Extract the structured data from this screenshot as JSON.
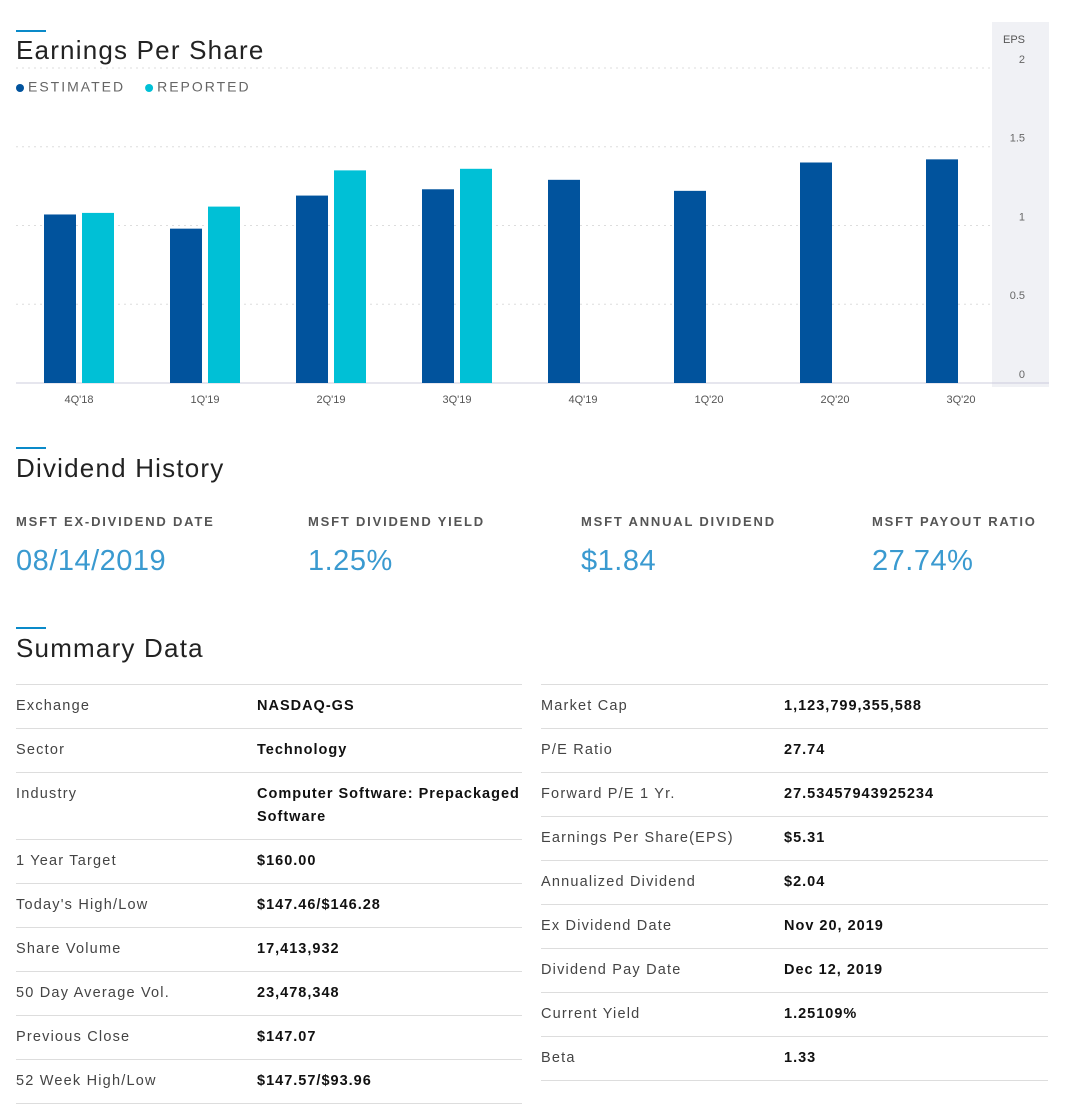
{
  "chart_data": {
    "type": "bar",
    "title": "Earnings Per Share",
    "y_label": "EPS",
    "categories": [
      "4Q'18",
      "1Q'19",
      "2Q'19",
      "3Q'19",
      "4Q'19",
      "1Q'20",
      "2Q'20",
      "3Q'20"
    ],
    "series": [
      {
        "name": "ESTIMATED",
        "color": "#01539d",
        "values": [
          1.07,
          0.98,
          1.19,
          1.23,
          1.29,
          1.22,
          1.4,
          1.42
        ]
      },
      {
        "name": "REPORTED",
        "color": "#00c0d6",
        "values": [
          1.08,
          1.12,
          1.35,
          1.36,
          null,
          null,
          null,
          null
        ]
      }
    ],
    "ylim": [
      0,
      2
    ],
    "yticks": [
      0,
      0.5,
      1,
      1.5,
      2
    ],
    "grid": true
  },
  "dividend": {
    "title": "Dividend History",
    "items": [
      {
        "label": "MSFT EX-DIVIDEND DATE",
        "value": "08/14/2019"
      },
      {
        "label": "MSFT DIVIDEND YIELD",
        "value": "1.25%"
      },
      {
        "label": "MSFT ANNUAL DIVIDEND",
        "value": "$1.84"
      },
      {
        "label": "MSFT PAYOUT RATIO",
        "value": "27.74%"
      }
    ]
  },
  "summary": {
    "title": "Summary Data",
    "left": [
      [
        "Exchange",
        "NASDAQ-GS"
      ],
      [
        "Sector",
        "Technology"
      ],
      [
        "Industry",
        "Computer Software: Prepackaged Software"
      ],
      [
        "1 Year Target",
        "$160.00"
      ],
      [
        "Today's High/Low",
        "$147.46/$146.28"
      ],
      [
        "Share Volume",
        "17,413,932"
      ],
      [
        "50 Day Average Vol.",
        "23,478,348"
      ],
      [
        "Previous Close",
        "$147.07"
      ],
      [
        "52 Week High/Low",
        "$147.57/$93.96"
      ]
    ],
    "right": [
      [
        "Market Cap",
        "1,123,799,355,588"
      ],
      [
        "P/E Ratio",
        "27.74"
      ],
      [
        "Forward P/E 1 Yr.",
        "27.53457943925234"
      ],
      [
        "Earnings Per Share(EPS)",
        "$5.31"
      ],
      [
        "Annualized Dividend",
        "$2.04"
      ],
      [
        "Ex Dividend Date",
        "Nov 20, 2019"
      ],
      [
        "Dividend Pay Date",
        "Dec 12, 2019"
      ],
      [
        "Current Yield",
        "1.25109%"
      ],
      [
        "Beta",
        "1.33"
      ]
    ]
  }
}
